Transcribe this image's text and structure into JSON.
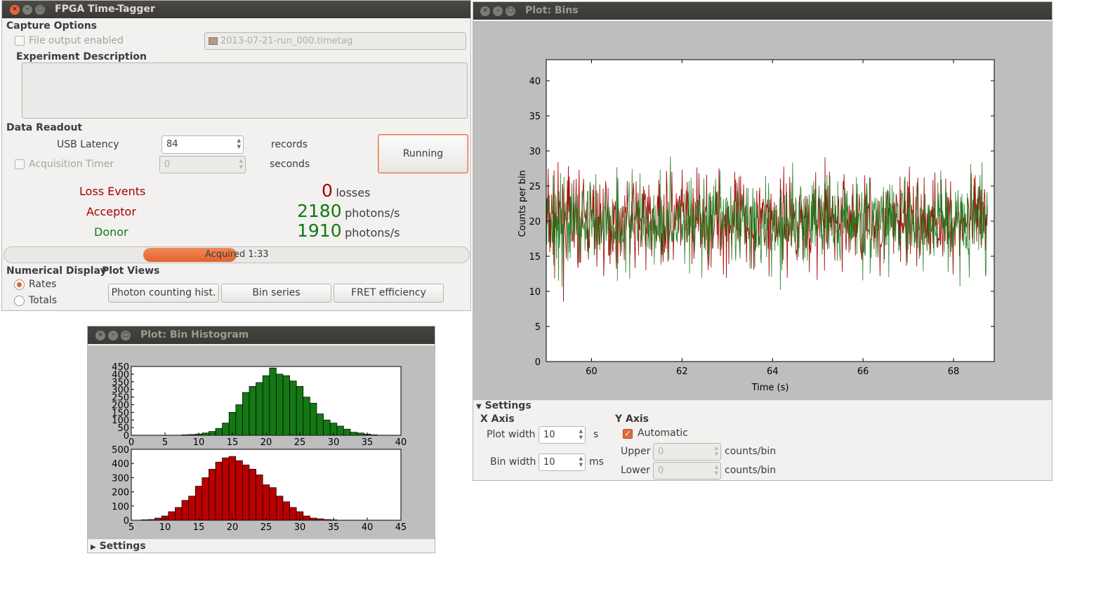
{
  "main_window": {
    "title": "FPGA Time-Tagger",
    "capture_options_label": "Capture Options",
    "file_output_label": "File output enabled",
    "file_path": "2013-07-21-run_000.timetag",
    "experiment_description_label": "Experiment Description",
    "data_readout_label": "Data Readout",
    "usb_latency_label": "USB Latency",
    "usb_latency_value": "84",
    "records_unit": "records",
    "acq_timer_label": "Acquisition Timer",
    "acq_timer_value": "0",
    "seconds_unit": "seconds",
    "running_button": "Running",
    "loss_label": "Loss Events",
    "loss_value": "0",
    "loss_unit": "losses",
    "acceptor_label": "Acceptor",
    "acceptor_value": "2180",
    "acceptor_unit": "photons/s",
    "donor_label": "Donor",
    "donor_value": "1910",
    "donor_unit": "photons/s",
    "progress_text": "Acquired 1:33",
    "numerical_display_label": "Numerical Display",
    "rates_label": "Rates",
    "totals_label": "Totals",
    "plot_views_label": "Plot Views",
    "btn_photon_hist": "Photon counting hist.",
    "btn_bin_series": "Bin series",
    "btn_fret": "FRET efficiency",
    "colors": {
      "accent": "#e86a34",
      "acceptor": "#a50000",
      "donor": "#147814"
    }
  },
  "bins_window": {
    "title": "Plot: Bins",
    "settings_label": "Settings",
    "x_axis_label": "X Axis",
    "y_axis_label": "Y Axis",
    "plot_width_label": "Plot width",
    "plot_width_value": "10",
    "plot_width_unit": "s",
    "bin_width_label": "Bin width",
    "bin_width_value": "10",
    "bin_width_unit": "ms",
    "automatic_label": "Automatic",
    "upper_label": "Upper",
    "upper_value": "0",
    "lower_label": "Lower",
    "lower_value": "0",
    "counts_unit": "counts/bin"
  },
  "hist_window": {
    "title": "Plot: Bin Histogram",
    "settings_label": "Settings"
  },
  "chart_data": [
    {
      "type": "line",
      "xlabel": "Time (s)",
      "ylabel": "Counts per bin",
      "xlim": [
        59,
        68.9
      ],
      "ylim": [
        0,
        43
      ],
      "x_ticks": [
        60,
        62,
        64,
        66,
        68
      ],
      "y_ticks": [
        0,
        5,
        10,
        15,
        20,
        25,
        30,
        35,
        40
      ],
      "series": [
        {
          "color": "#a50000",
          "mean": 20,
          "spread": 4.5
        },
        {
          "color": "#147814",
          "mean": 20,
          "spread": 4.5
        }
      ]
    },
    {
      "type": "bar",
      "color": "#147814",
      "xlim": [
        0,
        40
      ],
      "ylim": [
        0,
        450
      ],
      "x_ticks": [
        0,
        5,
        10,
        15,
        20,
        25,
        30,
        35,
        40
      ],
      "y_ticks": [
        0,
        50,
        100,
        150,
        200,
        250,
        300,
        350,
        400,
        450
      ],
      "x": [
        8,
        9,
        10,
        11,
        12,
        13,
        14,
        15,
        16,
        17,
        18,
        19,
        20,
        21,
        22,
        23,
        24,
        25,
        26,
        27,
        28,
        29,
        30,
        31,
        32,
        33,
        34,
        35,
        36
      ],
      "values": [
        3,
        5,
        8,
        15,
        25,
        45,
        80,
        150,
        200,
        280,
        320,
        345,
        390,
        440,
        400,
        390,
        355,
        320,
        250,
        210,
        140,
        100,
        80,
        60,
        40,
        20,
        15,
        8,
        3
      ]
    },
    {
      "type": "bar",
      "color": "#b80000",
      "xlim": [
        5,
        45
      ],
      "ylim": [
        0,
        500
      ],
      "x_ticks": [
        5,
        10,
        15,
        20,
        25,
        30,
        35,
        40,
        45
      ],
      "y_ticks": [
        0,
        100,
        200,
        300,
        400,
        500
      ],
      "x": [
        7,
        8,
        9,
        10,
        11,
        12,
        13,
        14,
        15,
        16,
        17,
        18,
        19,
        20,
        21,
        22,
        23,
        24,
        25,
        26,
        27,
        28,
        29,
        30,
        31,
        32,
        33,
        34,
        35
      ],
      "values": [
        3,
        5,
        15,
        30,
        60,
        90,
        140,
        170,
        240,
        300,
        360,
        410,
        440,
        450,
        420,
        390,
        360,
        320,
        250,
        230,
        170,
        130,
        90,
        60,
        30,
        15,
        10,
        5,
        3
      ]
    }
  ]
}
